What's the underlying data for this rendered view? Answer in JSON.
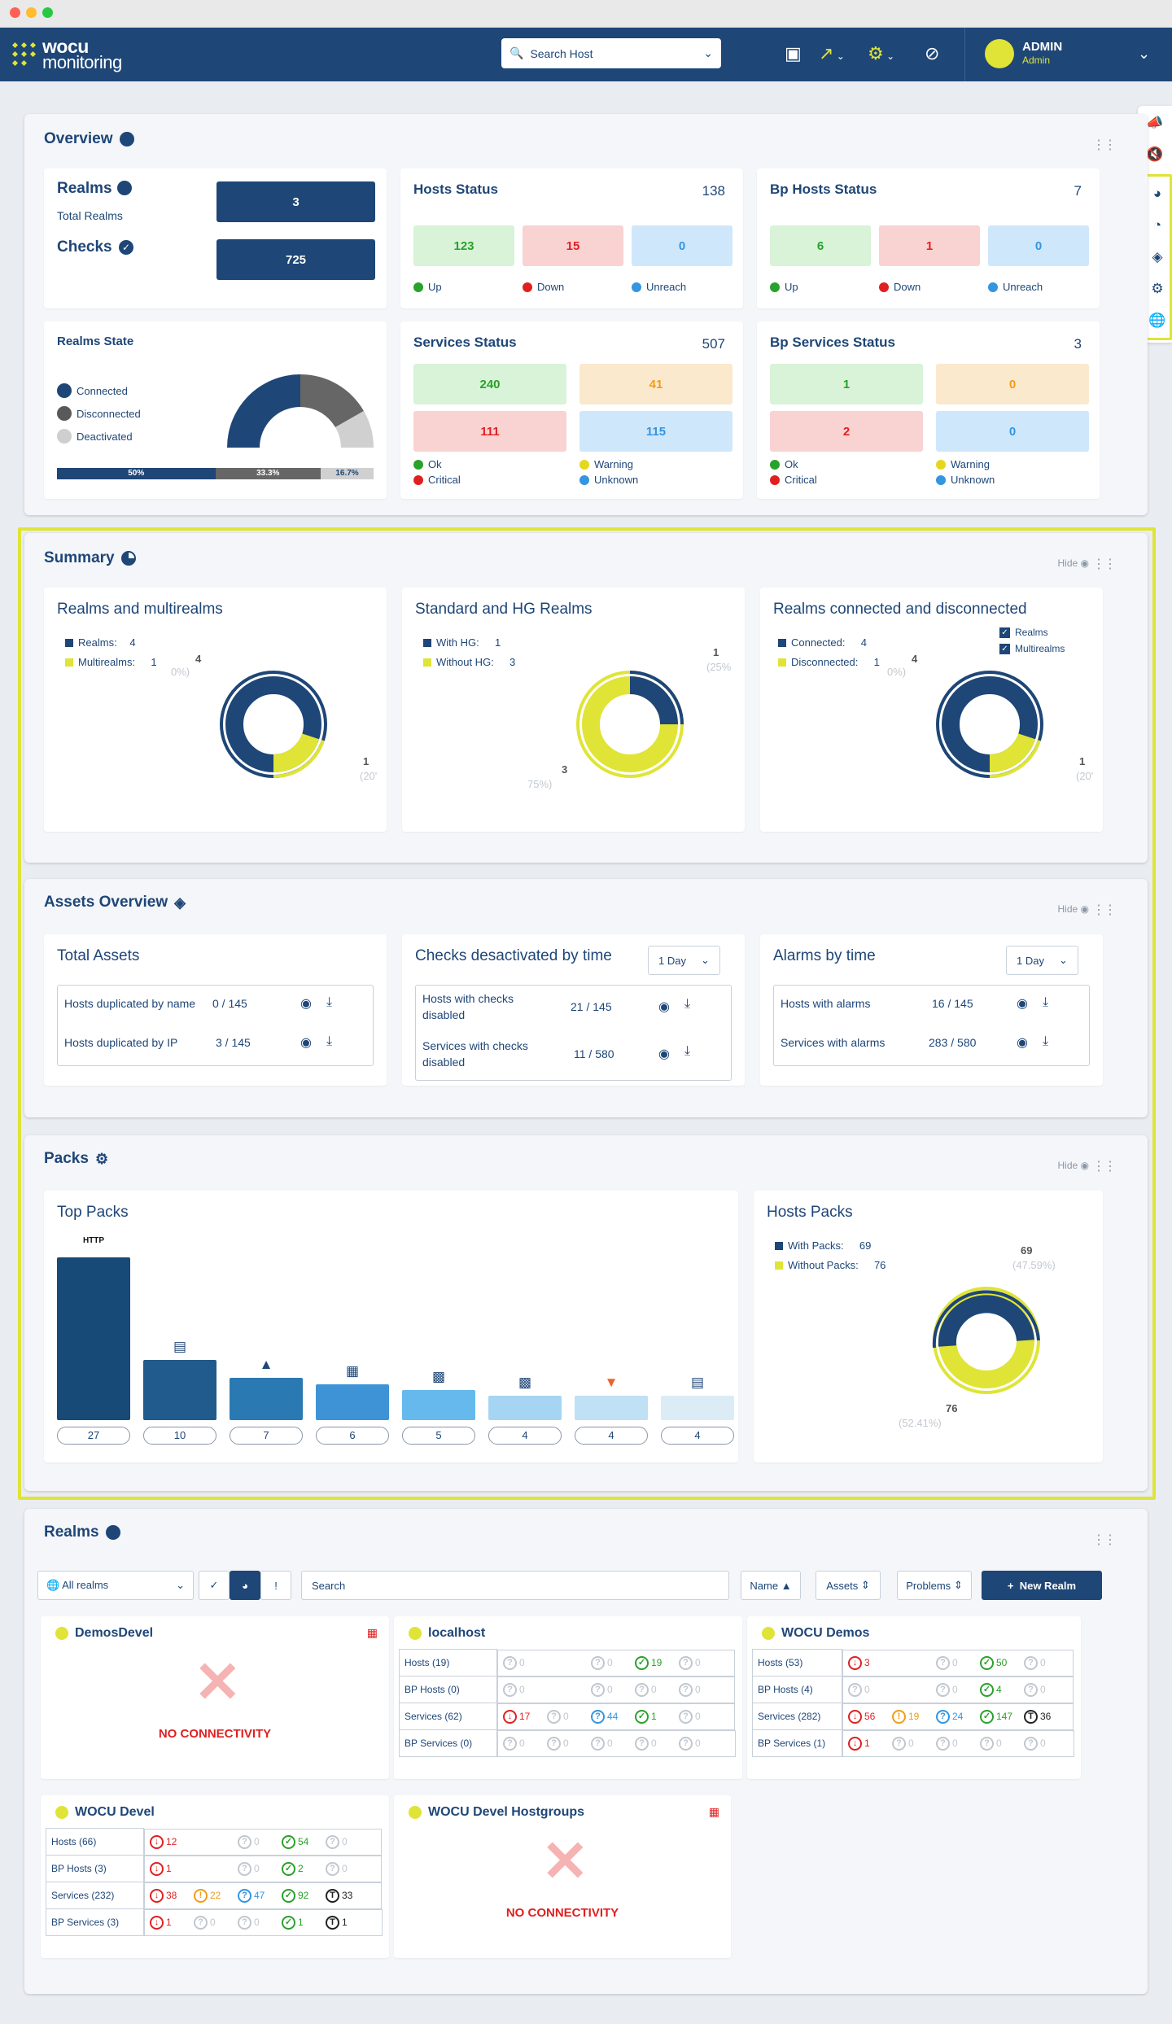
{
  "header": {
    "logo_line1": "wocu",
    "logo_line2": "monitoring",
    "search_placeholder": "Search Host",
    "user_name": "ADMIN",
    "user_role": "Admin"
  },
  "overview": {
    "title": "Overview",
    "realms_label": "Realms",
    "total_realms_label": "Total Realms",
    "total_realms": "3",
    "checks_label": "Checks",
    "checks": "725",
    "hosts_status": {
      "title": "Hosts Status",
      "total": "138",
      "up": "123",
      "down": "15",
      "unreach": "0",
      "up_label": "Up",
      "down_label": "Down",
      "unreach_label": "Unreach"
    },
    "bp_hosts_status": {
      "title": "Bp Hosts Status",
      "total": "7",
      "up": "6",
      "down": "1",
      "unreach": "0",
      "up_label": "Up",
      "down_label": "Down",
      "unreach_label": "Unreach"
    },
    "realms_state": {
      "title": "Realms State",
      "connected": "Connected",
      "disconnected": "Disconnected",
      "deactivated": "Deactivated",
      "pct_connected": "50%",
      "pct_disconnected": "33.3%",
      "pct_deactivated": "16.7%"
    },
    "services_status": {
      "title": "Services Status",
      "total": "507",
      "ok": "240",
      "warning": "41",
      "critical": "111",
      "unknown": "115",
      "ok_label": "Ok",
      "warning_label": "Warning",
      "critical_label": "Critical",
      "unknown_label": "Unknown"
    },
    "bp_services_status": {
      "title": "Bp Services Status",
      "total": "3",
      "ok": "1",
      "warning": "0",
      "critical": "2",
      "unknown": "0",
      "ok_label": "Ok",
      "warning_label": "Warning",
      "critical_label": "Critical",
      "unknown_label": "Unknown"
    }
  },
  "summary": {
    "title": "Summary",
    "hide": "Hide",
    "realms_multirealms": {
      "title": "Realms and multirealms",
      "l1": "Realms:",
      "v1": "4",
      "l2": "Multirealms:",
      "v2": "1",
      "ann_top": "4",
      "ann_top_pct": "0%)",
      "ann_bot": "1",
      "ann_bot_pct": "(20'"
    },
    "standard_hg": {
      "title": "Standard and HG Realms",
      "l1": "With HG:",
      "v1": "1",
      "l2": "Without HG:",
      "v2": "3",
      "ann_top": "1",
      "ann_top_pct": "(25%",
      "ann_bot": "3",
      "ann_bot_pct": "75%)"
    },
    "connected": {
      "title": "Realms connected and disconnected",
      "l1": "Connected:",
      "v1": "4",
      "l2": "Disconnected:",
      "v2": "1",
      "ann_top": "4",
      "ann_top_pct": "0%)",
      "ann_bot": "1",
      "ann_bot_pct": "(20'",
      "chk1": "Realms",
      "chk2": "Multirealms"
    }
  },
  "assets": {
    "title": "Assets Overview",
    "hide": "Hide",
    "total_assets": {
      "title": "Total Assets",
      "r1": "Hosts duplicated by name",
      "v1": "0 / 145",
      "r2": "Hosts duplicated by IP",
      "v2": "3 / 145"
    },
    "checks_deact": {
      "title": "Checks desactivated by time",
      "period": "1 Day",
      "r1": "Hosts with checks disabled",
      "v1": "21 / 145",
      "r2": "Services with checks disabled",
      "v2": "11 / 580"
    },
    "alarms": {
      "title": "Alarms by time",
      "period": "1 Day",
      "r1": "Hosts with alarms",
      "v1": "16 / 145",
      "r2": "Services with alarms",
      "v2": "283 / 580"
    }
  },
  "packs": {
    "title": "Packs",
    "hide": "Hide",
    "top_packs_title": "Top Packs",
    "hosts_packs": {
      "title": "Hosts Packs",
      "l1": "With Packs:",
      "v1": "69",
      "l2": "Without Packs:",
      "v2": "76",
      "ann_top": "69",
      "ann_top_pct": "(47.59%)",
      "ann_bot": "76",
      "ann_bot_pct": "(52.41%)"
    }
  },
  "chart_data": {
    "type": "bar",
    "title": "Top Packs",
    "categories": [
      "HTTP",
      "printer",
      "linux",
      "network",
      "wocu",
      "wocu",
      "gitlab",
      "printer"
    ],
    "values": [
      27,
      10,
      7,
      6,
      5,
      4,
      4,
      4
    ],
    "ylim": [
      0,
      27
    ],
    "colors": [
      "#184a77",
      "#215a8c",
      "#2b79b3",
      "#3d93d6",
      "#66b9ec",
      "#a5d5f3",
      "#c0e0f5",
      "#dcecf7"
    ]
  },
  "realms": {
    "title": "Realms",
    "filter": "All realms",
    "search_placeholder": "Search",
    "sort_name": "Name",
    "sort_assets": "Assets",
    "sort_problems": "Problems",
    "new_realm": "New Realm",
    "no_connectivity": "NO CONNECTIVITY",
    "cards": [
      {
        "name": "DemosDevel",
        "connected": false
      },
      {
        "name": "localhost",
        "connected": true,
        "rows": [
          {
            "label": "Hosts (19)",
            "c": [
              "0",
              "0",
              "19",
              "0"
            ],
            "k": [
              "grey",
              "grey",
              "green",
              "grey"
            ]
          },
          {
            "label": "BP Hosts (0)",
            "c": [
              "0",
              "0",
              "0",
              "0"
            ],
            "k": [
              "grey",
              "grey",
              "grey",
              "grey"
            ]
          },
          {
            "label": "Services (62)",
            "c": [
              "17",
              "0",
              "44",
              "1",
              "0"
            ],
            "k": [
              "red",
              "grey",
              "blue",
              "green",
              "grey"
            ]
          },
          {
            "label": "BP Services (0)",
            "c": [
              "0",
              "0",
              "0",
              "0",
              "0"
            ],
            "k": [
              "grey",
              "grey",
              "grey",
              "grey",
              "grey"
            ]
          }
        ]
      },
      {
        "name": "WOCU Demos",
        "connected": true,
        "rows": [
          {
            "label": "Hosts (53)",
            "c": [
              "3",
              "0",
              "50",
              "0"
            ],
            "k": [
              "red",
              "grey",
              "green",
              "grey"
            ]
          },
          {
            "label": "BP Hosts (4)",
            "c": [
              "0",
              "0",
              "4",
              "0"
            ],
            "k": [
              "grey",
              "grey",
              "green",
              "grey"
            ]
          },
          {
            "label": "Services (282)",
            "c": [
              "56",
              "19",
              "24",
              "147",
              "36"
            ],
            "k": [
              "red",
              "orange",
              "blue",
              "green",
              "black"
            ]
          },
          {
            "label": "BP Services (1)",
            "c": [
              "1",
              "0",
              "0",
              "0",
              "0"
            ],
            "k": [
              "red",
              "grey",
              "grey",
              "grey",
              "grey"
            ]
          }
        ]
      },
      {
        "name": "WOCU Devel",
        "connected": true,
        "rows": [
          {
            "label": "Hosts (66)",
            "c": [
              "12",
              "0",
              "54",
              "0"
            ],
            "k": [
              "red",
              "grey",
              "green",
              "grey"
            ]
          },
          {
            "label": "BP Hosts (3)",
            "c": [
              "1",
              "0",
              "2",
              "0"
            ],
            "k": [
              "red",
              "grey",
              "green",
              "grey"
            ]
          },
          {
            "label": "Services (232)",
            "c": [
              "38",
              "22",
              "47",
              "92",
              "33"
            ],
            "k": [
              "red",
              "orange",
              "blue",
              "green",
              "black"
            ]
          },
          {
            "label": "BP Services (3)",
            "c": [
              "1",
              "0",
              "0",
              "1",
              "1"
            ],
            "k": [
              "red",
              "grey",
              "grey",
              "green",
              "black"
            ]
          }
        ]
      },
      {
        "name": "WOCU Devel Hostgroups",
        "connected": false
      }
    ]
  }
}
